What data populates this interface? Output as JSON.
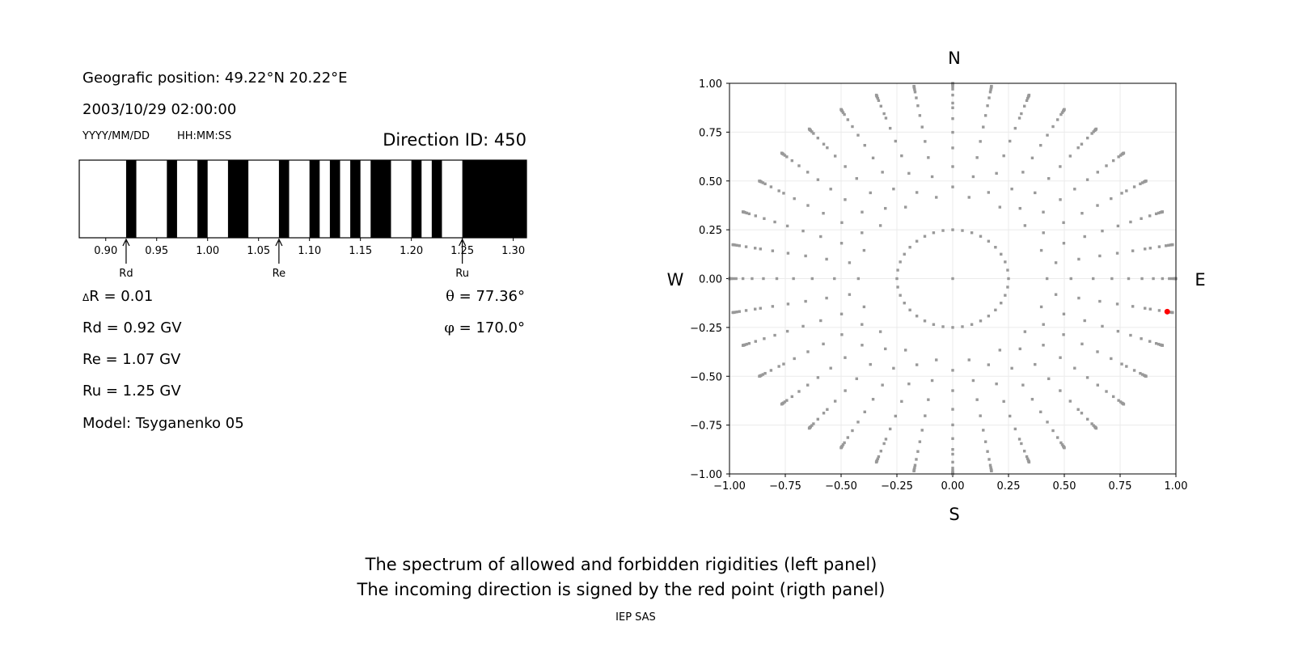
{
  "left_panel": {
    "position": "Geografic position: 49.22°N 20.22°E",
    "datetime": "2003/10/29 02:00:00",
    "date_format": "YYYY/MM/DD",
    "time_format": "HH:MM:SS",
    "direction_id": "Direction ID: 450",
    "delta_r_symbol": "Δ",
    "delta_r": "R = 0.01",
    "rd": "Rd = 0.92 GV",
    "re": "Re = 1.07 GV",
    "ru": "Ru = 1.25 GV",
    "model": "Model: Tsyganenko 05",
    "theta_symbol": "θ",
    "theta": " = 77.36°",
    "phi_symbol": "φ",
    "phi": " = 170.0°"
  },
  "caption": {
    "line1": "The spectrum of allowed and forbidden rigidities (left panel)",
    "line2": "The incoming direction is signed by the red point (rigth panel)",
    "credit": "IEP SAS"
  },
  "chart_data": [
    {
      "type": "barcode",
      "xlim": [
        0.874,
        1.313
      ],
      "xticks": [
        "0.90",
        "0.95",
        "1.00",
        "1.05",
        "1.10",
        "1.15",
        "1.20",
        "1.25",
        "1.30"
      ],
      "forbidden_bands": [
        [
          0.92,
          0.93
        ],
        [
          0.96,
          0.97
        ],
        [
          0.99,
          1.0
        ],
        [
          1.02,
          1.04
        ],
        [
          1.07,
          1.08
        ],
        [
          1.1,
          1.11
        ],
        [
          1.12,
          1.13
        ],
        [
          1.14,
          1.15
        ],
        [
          1.16,
          1.18
        ],
        [
          1.2,
          1.21
        ],
        [
          1.22,
          1.23
        ],
        [
          1.25,
          1.313
        ]
      ],
      "markers": [
        {
          "label": "Rd",
          "value": 0.92
        },
        {
          "label": "Re",
          "value": 1.07
        },
        {
          "label": "Ru",
          "value": 1.25
        }
      ],
      "colors": {
        "forbidden": "#000000",
        "allowed": "#ffffff"
      }
    },
    {
      "type": "scatter",
      "xlim": [
        -1,
        1
      ],
      "ylim": [
        -1,
        1
      ],
      "xticks": [
        "−1.00",
        "−0.75",
        "−0.50",
        "−0.25",
        "0.00",
        "0.25",
        "0.50",
        "0.75",
        "1.00"
      ],
      "yticks": [
        "−1.00",
        "−0.75",
        "−0.50",
        "−0.25",
        "0.00",
        "0.25",
        "0.50",
        "0.75",
        "1.00"
      ],
      "grid": true,
      "directions": {
        "north": "N",
        "south": "S",
        "west": "W",
        "east": "E"
      },
      "inner_ring_radius": 0.25,
      "inner_ring_azimuth_step_deg": 10,
      "spoke_azimuth_step_deg": 10,
      "spoke_zenith_angles_deg": [
        25,
        32,
        39,
        45.5,
        52,
        58,
        64,
        70,
        76,
        79,
        82,
        84,
        86,
        88,
        90
      ],
      "highlight_point": {
        "x": 0.961,
        "y": -0.169,
        "color": "#ff0000"
      },
      "point_color": "#999999"
    }
  ]
}
